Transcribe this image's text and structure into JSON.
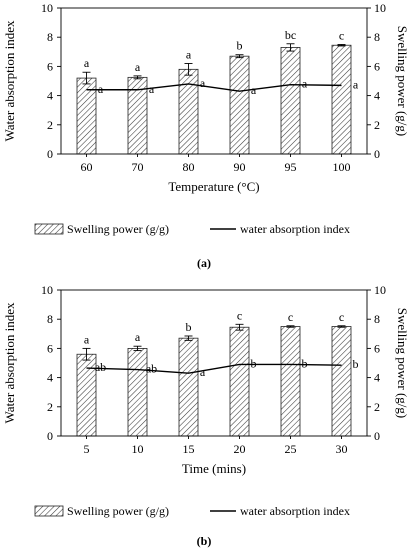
{
  "panels": [
    {
      "panel_label": "(a)",
      "chart_data": {
        "type": "bar",
        "title": "",
        "categories": [
          "60",
          "70",
          "80",
          "90",
          "95",
          "100"
        ],
        "xlabel": "Temperature (°C)",
        "ylabel_left": "Water absorption index",
        "ylabel_right": "Swelling power (g/g)",
        "ylim_left": [
          0,
          10
        ],
        "ylim_right": [
          0,
          10
        ],
        "yticks": [
          "0",
          "2",
          "4",
          "6",
          "8",
          "10"
        ],
        "grid": false,
        "legend_position": "bottom",
        "series": [
          {
            "name": "Swelling power (g/g)",
            "kind": "bar",
            "axis": "right",
            "fill": "hatched",
            "values": [
              5.2,
              5.25,
              5.8,
              6.7,
              7.3,
              7.45
            ],
            "errors": [
              0.4,
              0.1,
              0.4,
              0.1,
              0.25,
              0.05
            ],
            "labels": [
              "a",
              "a",
              "a",
              "b",
              "bc",
              "c"
            ]
          },
          {
            "name": "water absorption index",
            "kind": "line",
            "axis": "left",
            "values": [
              4.4,
              4.4,
              4.8,
              4.3,
              4.75,
              4.7
            ],
            "labels": [
              "a",
              "a",
              "a",
              "a",
              "a",
              "a"
            ]
          }
        ]
      }
    },
    {
      "panel_label": "(b)",
      "chart_data": {
        "type": "bar",
        "title": "",
        "categories": [
          "5",
          "10",
          "15",
          "20",
          "25",
          "30"
        ],
        "xlabel": "Time (mins)",
        "ylabel_left": "Water absorption index",
        "ylabel_right": "Swelling power (g/g)",
        "ylim_left": [
          0,
          10
        ],
        "ylim_right": [
          0,
          10
        ],
        "yticks": [
          "0",
          "2",
          "4",
          "6",
          "8",
          "10"
        ],
        "grid": false,
        "legend_position": "bottom",
        "series": [
          {
            "name": "Swelling power (g/g)",
            "kind": "bar",
            "axis": "right",
            "fill": "hatched",
            "values": [
              5.6,
              6.0,
              6.7,
              7.45,
              7.5,
              7.5
            ],
            "errors": [
              0.4,
              0.15,
              0.15,
              0.2,
              0.05,
              0.05
            ],
            "labels": [
              "a",
              "a",
              "b",
              "c",
              "c",
              "c"
            ]
          },
          {
            "name": "water absorption index",
            "kind": "line",
            "axis": "left",
            "values": [
              4.65,
              4.55,
              4.3,
              4.9,
              4.9,
              4.85
            ],
            "labels": [
              "ab",
              "ab",
              "a",
              "b",
              "b",
              "b"
            ]
          }
        ]
      }
    }
  ]
}
